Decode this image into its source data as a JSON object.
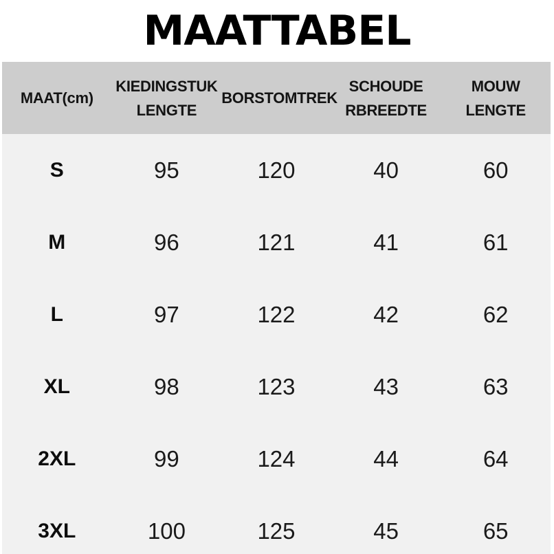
{
  "title": "MAATTABEL",
  "colors": {
    "page_bg": "#ffffff",
    "header_bg": "#cdcdcd",
    "body_bg": "#f1f1f1",
    "text": "#111111"
  },
  "table": {
    "columns": [
      {
        "label": "MAAT(cm)",
        "line1": "MAAT(cm)"
      },
      {
        "label": "KIEDINGSTUK LENGTE",
        "line1": "KIEDINGSTUK",
        "line2": "LENGTE"
      },
      {
        "label": "BORSTOMTREK",
        "line1": "BORSTOMTREK"
      },
      {
        "label": "SCHOUDE RBREEDTE",
        "line1": "SCHOUDE",
        "line2": "RBREEDTE"
      },
      {
        "label": "MOUW LENGTE",
        "line1": "MOUW",
        "line2": "LENGTE"
      }
    ],
    "rows": [
      {
        "size": "S",
        "values": [
          "95",
          "120",
          "40",
          "60"
        ]
      },
      {
        "size": "M",
        "values": [
          "96",
          "121",
          "41",
          "61"
        ]
      },
      {
        "size": "L",
        "values": [
          "97",
          "122",
          "42",
          "62"
        ]
      },
      {
        "size": "XL",
        "values": [
          "98",
          "123",
          "43",
          "63"
        ]
      },
      {
        "size": "2XL",
        "values": [
          "99",
          "124",
          "44",
          "64"
        ]
      },
      {
        "size": "3XL",
        "values": [
          "100",
          "125",
          "45",
          "65"
        ]
      }
    ]
  },
  "chart_data": {
    "type": "table",
    "title": "MAATTABEL",
    "columns": [
      "MAAT(cm)",
      "KIEDINGSTUK LENGTE",
      "BORSTOMTREK",
      "SCHOUDE RBREEDTE",
      "MOUW LENGTE"
    ],
    "rows": [
      [
        "S",
        95,
        120,
        40,
        60
      ],
      [
        "M",
        96,
        121,
        41,
        61
      ],
      [
        "L",
        97,
        122,
        42,
        62
      ],
      [
        "XL",
        98,
        123,
        43,
        63
      ],
      [
        "2XL",
        99,
        124,
        44,
        64
      ],
      [
        "3XL",
        100,
        125,
        45,
        65
      ]
    ]
  }
}
